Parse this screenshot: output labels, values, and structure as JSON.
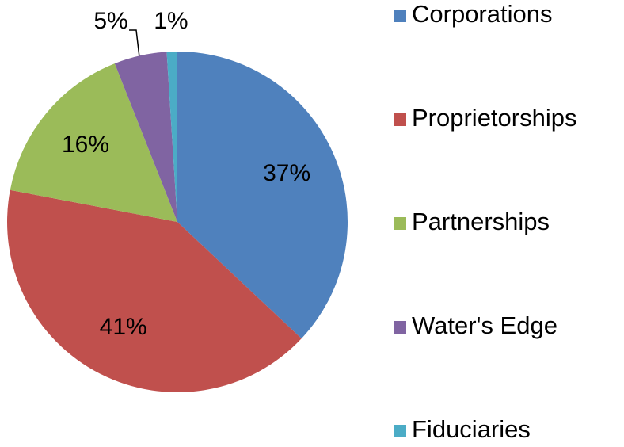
{
  "chart_data": {
    "type": "pie",
    "categories": [
      "Corporations",
      "Proprietorships",
      "Partnerships",
      "Water's Edge",
      "Fiduciaries"
    ],
    "values": [
      37,
      41,
      16,
      5,
      1
    ],
    "value_labels": [
      "37%",
      "41%",
      "16%",
      "5%",
      "1%"
    ],
    "colors": [
      "#4f81bd",
      "#c0504d",
      "#9bbb59",
      "#8064a2",
      "#4bacc6"
    ],
    "legend": "right"
  }
}
